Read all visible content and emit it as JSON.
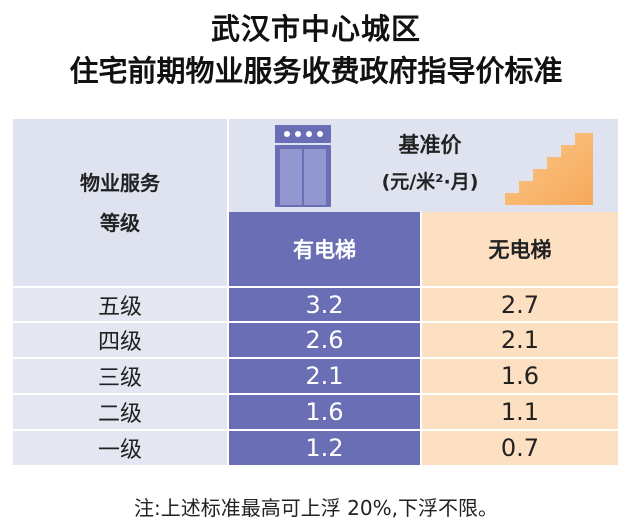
{
  "title": {
    "line1": "武汉市中心城区",
    "line2": "住宅前期物业服务收费政府指导价标准"
  },
  "table": {
    "grade_header_line1": "物业服务",
    "grade_header_line2": "等级",
    "price_label": "基准价",
    "price_unit": "(元/米²·月)",
    "col_elevator": "有电梯",
    "col_no_elevator": "无电梯",
    "rows": [
      {
        "grade": "五级",
        "elevator": "3.2",
        "no_elevator": "2.7"
      },
      {
        "grade": "四级",
        "elevator": "2.6",
        "no_elevator": "2.1"
      },
      {
        "grade": "三级",
        "elevator": "2.1",
        "no_elevator": "1.6"
      },
      {
        "grade": "二级",
        "elevator": "1.6",
        "no_elevator": "1.1"
      },
      {
        "grade": "一级",
        "elevator": "1.2",
        "no_elevator": "0.7"
      }
    ]
  },
  "icons": {
    "elevator": "elevator-icon",
    "stairs": "stairs-icon"
  },
  "colors": {
    "elevator_column": "#6a6fb5",
    "no_elevator_column": "#fde0c2",
    "header_bg": "#dfe2ef"
  },
  "note": "注:上述标准最高可上浮 20%,下浮不限。"
}
